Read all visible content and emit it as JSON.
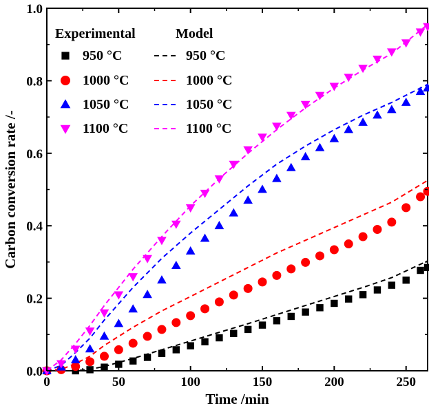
{
  "chart_data": {
    "type": "scatter",
    "xlabel": "Time /min",
    "ylabel": "Carbon conversion rate /-",
    "xlim": [
      0,
      265
    ],
    "ylim": [
      0,
      1.0
    ],
    "xticks": [
      0,
      50,
      100,
      150,
      200,
      250
    ],
    "yticks": [
      0.0,
      0.2,
      0.4,
      0.6,
      0.8,
      1.0
    ],
    "ytick_labels": [
      "0.0",
      "0.2",
      "0.4",
      "0.6",
      "0.8",
      "1.0"
    ],
    "xtick_labels": [
      "0",
      "50",
      "100",
      "150",
      "200",
      "250"
    ],
    "grid": false,
    "legend": {
      "placement": "top-left",
      "experimental_header": "Experimental",
      "model_header": "Model",
      "entries": [
        "950 °C",
        "1000 °C",
        "1050 °C",
        "1100 °C"
      ]
    },
    "series": [
      {
        "name": "950 °C",
        "kind": "experimental",
        "marker": "square",
        "color": "#000000",
        "x": [
          0,
          20,
          30,
          40,
          50,
          60,
          70,
          80,
          90,
          100,
          110,
          120,
          130,
          140,
          150,
          160,
          170,
          180,
          190,
          200,
          210,
          220,
          230,
          240,
          250,
          260,
          265
        ],
        "y": [
          0.0,
          0.0,
          0.003,
          0.01,
          0.018,
          0.027,
          0.037,
          0.048,
          0.058,
          0.069,
          0.08,
          0.091,
          0.103,
          0.114,
          0.126,
          0.138,
          0.15,
          0.162,
          0.174,
          0.186,
          0.198,
          0.21,
          0.223,
          0.236,
          0.25,
          0.277,
          0.285
        ]
      },
      {
        "name": "1000 °C",
        "kind": "experimental",
        "marker": "circle",
        "color": "#ff0000",
        "x": [
          0,
          10,
          20,
          30,
          40,
          50,
          60,
          70,
          80,
          90,
          100,
          110,
          120,
          130,
          140,
          150,
          160,
          170,
          180,
          190,
          200,
          210,
          220,
          230,
          240,
          250,
          260,
          265
        ],
        "y": [
          0.0,
          0.003,
          0.012,
          0.025,
          0.04,
          0.058,
          0.076,
          0.095,
          0.114,
          0.133,
          0.152,
          0.171,
          0.19,
          0.209,
          0.227,
          0.245,
          0.263,
          0.281,
          0.299,
          0.317,
          0.334,
          0.35,
          0.37,
          0.39,
          0.41,
          0.45,
          0.48,
          0.495
        ]
      },
      {
        "name": "1050 °C",
        "kind": "experimental",
        "marker": "triangle-up",
        "color": "#0000ff",
        "x": [
          0,
          10,
          20,
          30,
          40,
          50,
          60,
          70,
          80,
          90,
          100,
          110,
          120,
          130,
          140,
          150,
          160,
          170,
          180,
          190,
          200,
          210,
          220,
          230,
          240,
          250,
          260,
          265
        ],
        "y": [
          0.0,
          0.01,
          0.03,
          0.06,
          0.095,
          0.13,
          0.17,
          0.21,
          0.25,
          0.29,
          0.33,
          0.365,
          0.4,
          0.435,
          0.47,
          0.5,
          0.53,
          0.56,
          0.59,
          0.615,
          0.64,
          0.665,
          0.685,
          0.705,
          0.72,
          0.74,
          0.77,
          0.78
        ]
      },
      {
        "name": "1100 °C",
        "kind": "experimental",
        "marker": "triangle-down",
        "color": "#ff00ff",
        "x": [
          0,
          10,
          20,
          30,
          40,
          50,
          60,
          70,
          80,
          90,
          100,
          110,
          120,
          130,
          140,
          150,
          160,
          170,
          180,
          190,
          200,
          210,
          220,
          230,
          240,
          250,
          260,
          265
        ],
        "y": [
          0.0,
          0.02,
          0.06,
          0.11,
          0.16,
          0.21,
          0.26,
          0.31,
          0.36,
          0.405,
          0.45,
          0.49,
          0.53,
          0.57,
          0.61,
          0.645,
          0.675,
          0.705,
          0.735,
          0.76,
          0.785,
          0.81,
          0.835,
          0.86,
          0.88,
          0.905,
          0.935,
          0.95
        ]
      },
      {
        "name": "950 °C",
        "kind": "model",
        "line": "dashed",
        "color": "#000000",
        "x": [
          0,
          20,
          30,
          40,
          60,
          80,
          100,
          120,
          140,
          160,
          180,
          200,
          220,
          240,
          265
        ],
        "y": [
          0.0,
          0.0,
          0.004,
          0.012,
          0.034,
          0.058,
          0.082,
          0.106,
          0.13,
          0.155,
          0.18,
          0.205,
          0.23,
          0.257,
          0.303
        ]
      },
      {
        "name": "1000 °C",
        "kind": "model",
        "line": "dashed",
        "color": "#ff0000",
        "x": [
          0,
          10,
          20,
          30,
          40,
          60,
          80,
          100,
          120,
          140,
          160,
          180,
          200,
          220,
          240,
          265
        ],
        "y": [
          0.0,
          0.004,
          0.02,
          0.04,
          0.07,
          0.12,
          0.165,
          0.205,
          0.245,
          0.285,
          0.325,
          0.36,
          0.395,
          0.43,
          0.465,
          0.525
        ]
      },
      {
        "name": "1050 °C",
        "kind": "model",
        "line": "dashed",
        "color": "#0000ff",
        "x": [
          0,
          10,
          20,
          30,
          40,
          60,
          80,
          100,
          120,
          140,
          160,
          180,
          200,
          220,
          240,
          265
        ],
        "y": [
          0.0,
          0.015,
          0.05,
          0.09,
          0.14,
          0.23,
          0.31,
          0.38,
          0.445,
          0.51,
          0.57,
          0.62,
          0.665,
          0.705,
          0.74,
          0.79
        ]
      },
      {
        "name": "1100 °C",
        "kind": "model",
        "line": "dashed",
        "color": "#ff00ff",
        "x": [
          0,
          10,
          20,
          30,
          40,
          60,
          80,
          100,
          120,
          140,
          160,
          180,
          200,
          220,
          240,
          265
        ],
        "y": [
          0.0,
          0.03,
          0.075,
          0.125,
          0.18,
          0.28,
          0.37,
          0.455,
          0.53,
          0.6,
          0.665,
          0.725,
          0.78,
          0.83,
          0.875,
          0.955
        ]
      }
    ]
  }
}
